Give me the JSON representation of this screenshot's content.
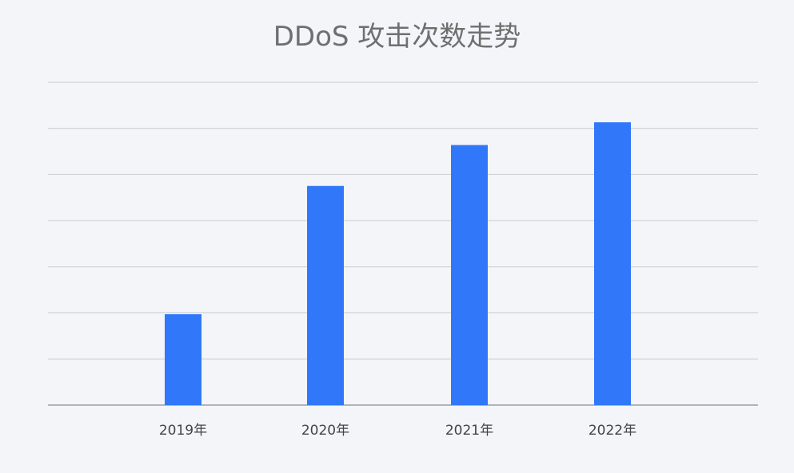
{
  "chart_data": {
    "type": "bar",
    "title": "DDoS 攻击次数走势",
    "categories": [
      "2019年",
      "2020年",
      "2021年",
      "2022年"
    ],
    "values": [
      20,
      48.2,
      57.2,
      62.2
    ],
    "ylim": [
      0,
      71
    ],
    "grid": true,
    "xlabel": "",
    "ylabel": "",
    "colors": {
      "bar": "#3078f9",
      "grid": "#c9ccd2",
      "axis": "#9a9ea6"
    }
  }
}
